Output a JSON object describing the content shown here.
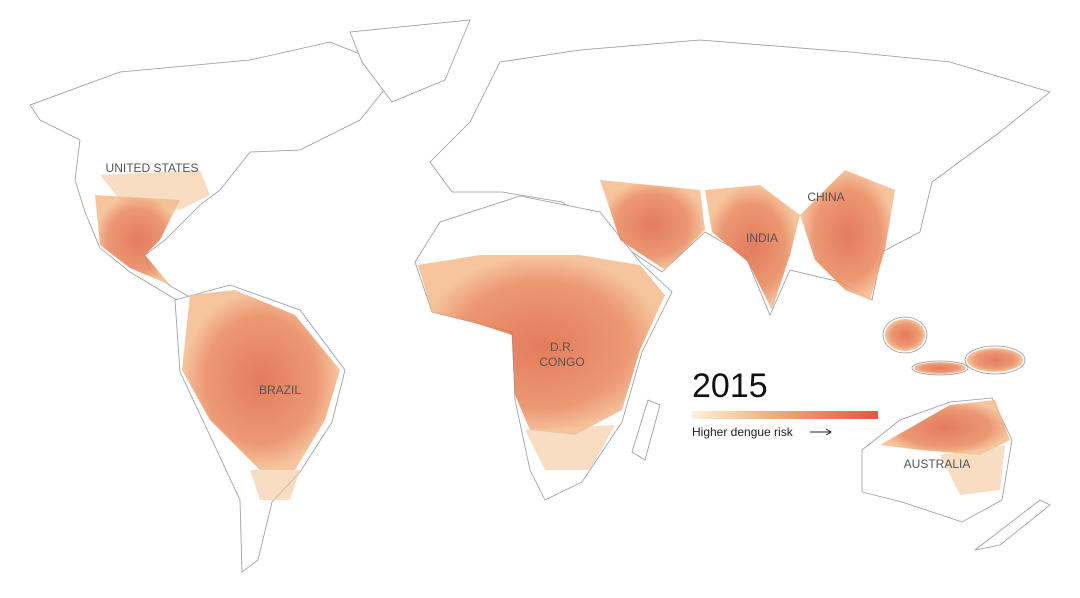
{
  "title": "2015",
  "legend": {
    "label": "Higher dengue risk"
  },
  "labels": [
    {
      "lines": [
        "UNITED STATES"
      ]
    },
    {
      "lines": [
        "CHINA"
      ]
    },
    {
      "lines": [
        "INDIA"
      ]
    },
    {
      "lines": [
        "D.R.",
        "CONGO"
      ]
    },
    {
      "lines": [
        "BRAZIL"
      ]
    },
    {
      "lines": [
        "AUSTRALIA"
      ]
    }
  ]
}
